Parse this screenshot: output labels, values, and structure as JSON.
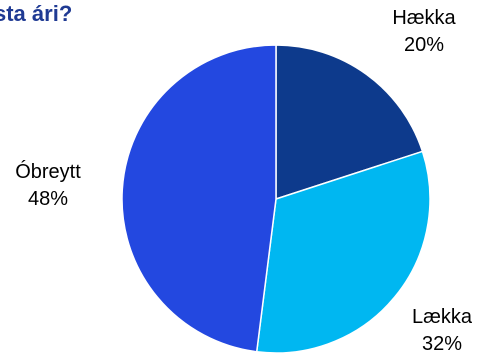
{
  "title": "sta ári?",
  "chart_data": {
    "type": "pie",
    "title": "sta ári?",
    "start_angle_deg": 0,
    "direction": "clockwise",
    "slices": [
      {
        "label": "Hækka",
        "value": 20,
        "value_label": "20%",
        "color": "#0d3a8c"
      },
      {
        "label": "Lækka",
        "value": 32,
        "value_label": "32%",
        "color": "#00b7f1"
      },
      {
        "label": "Óbreytt",
        "value": 48,
        "value_label": "48%",
        "color": "#2348e0"
      }
    ]
  }
}
